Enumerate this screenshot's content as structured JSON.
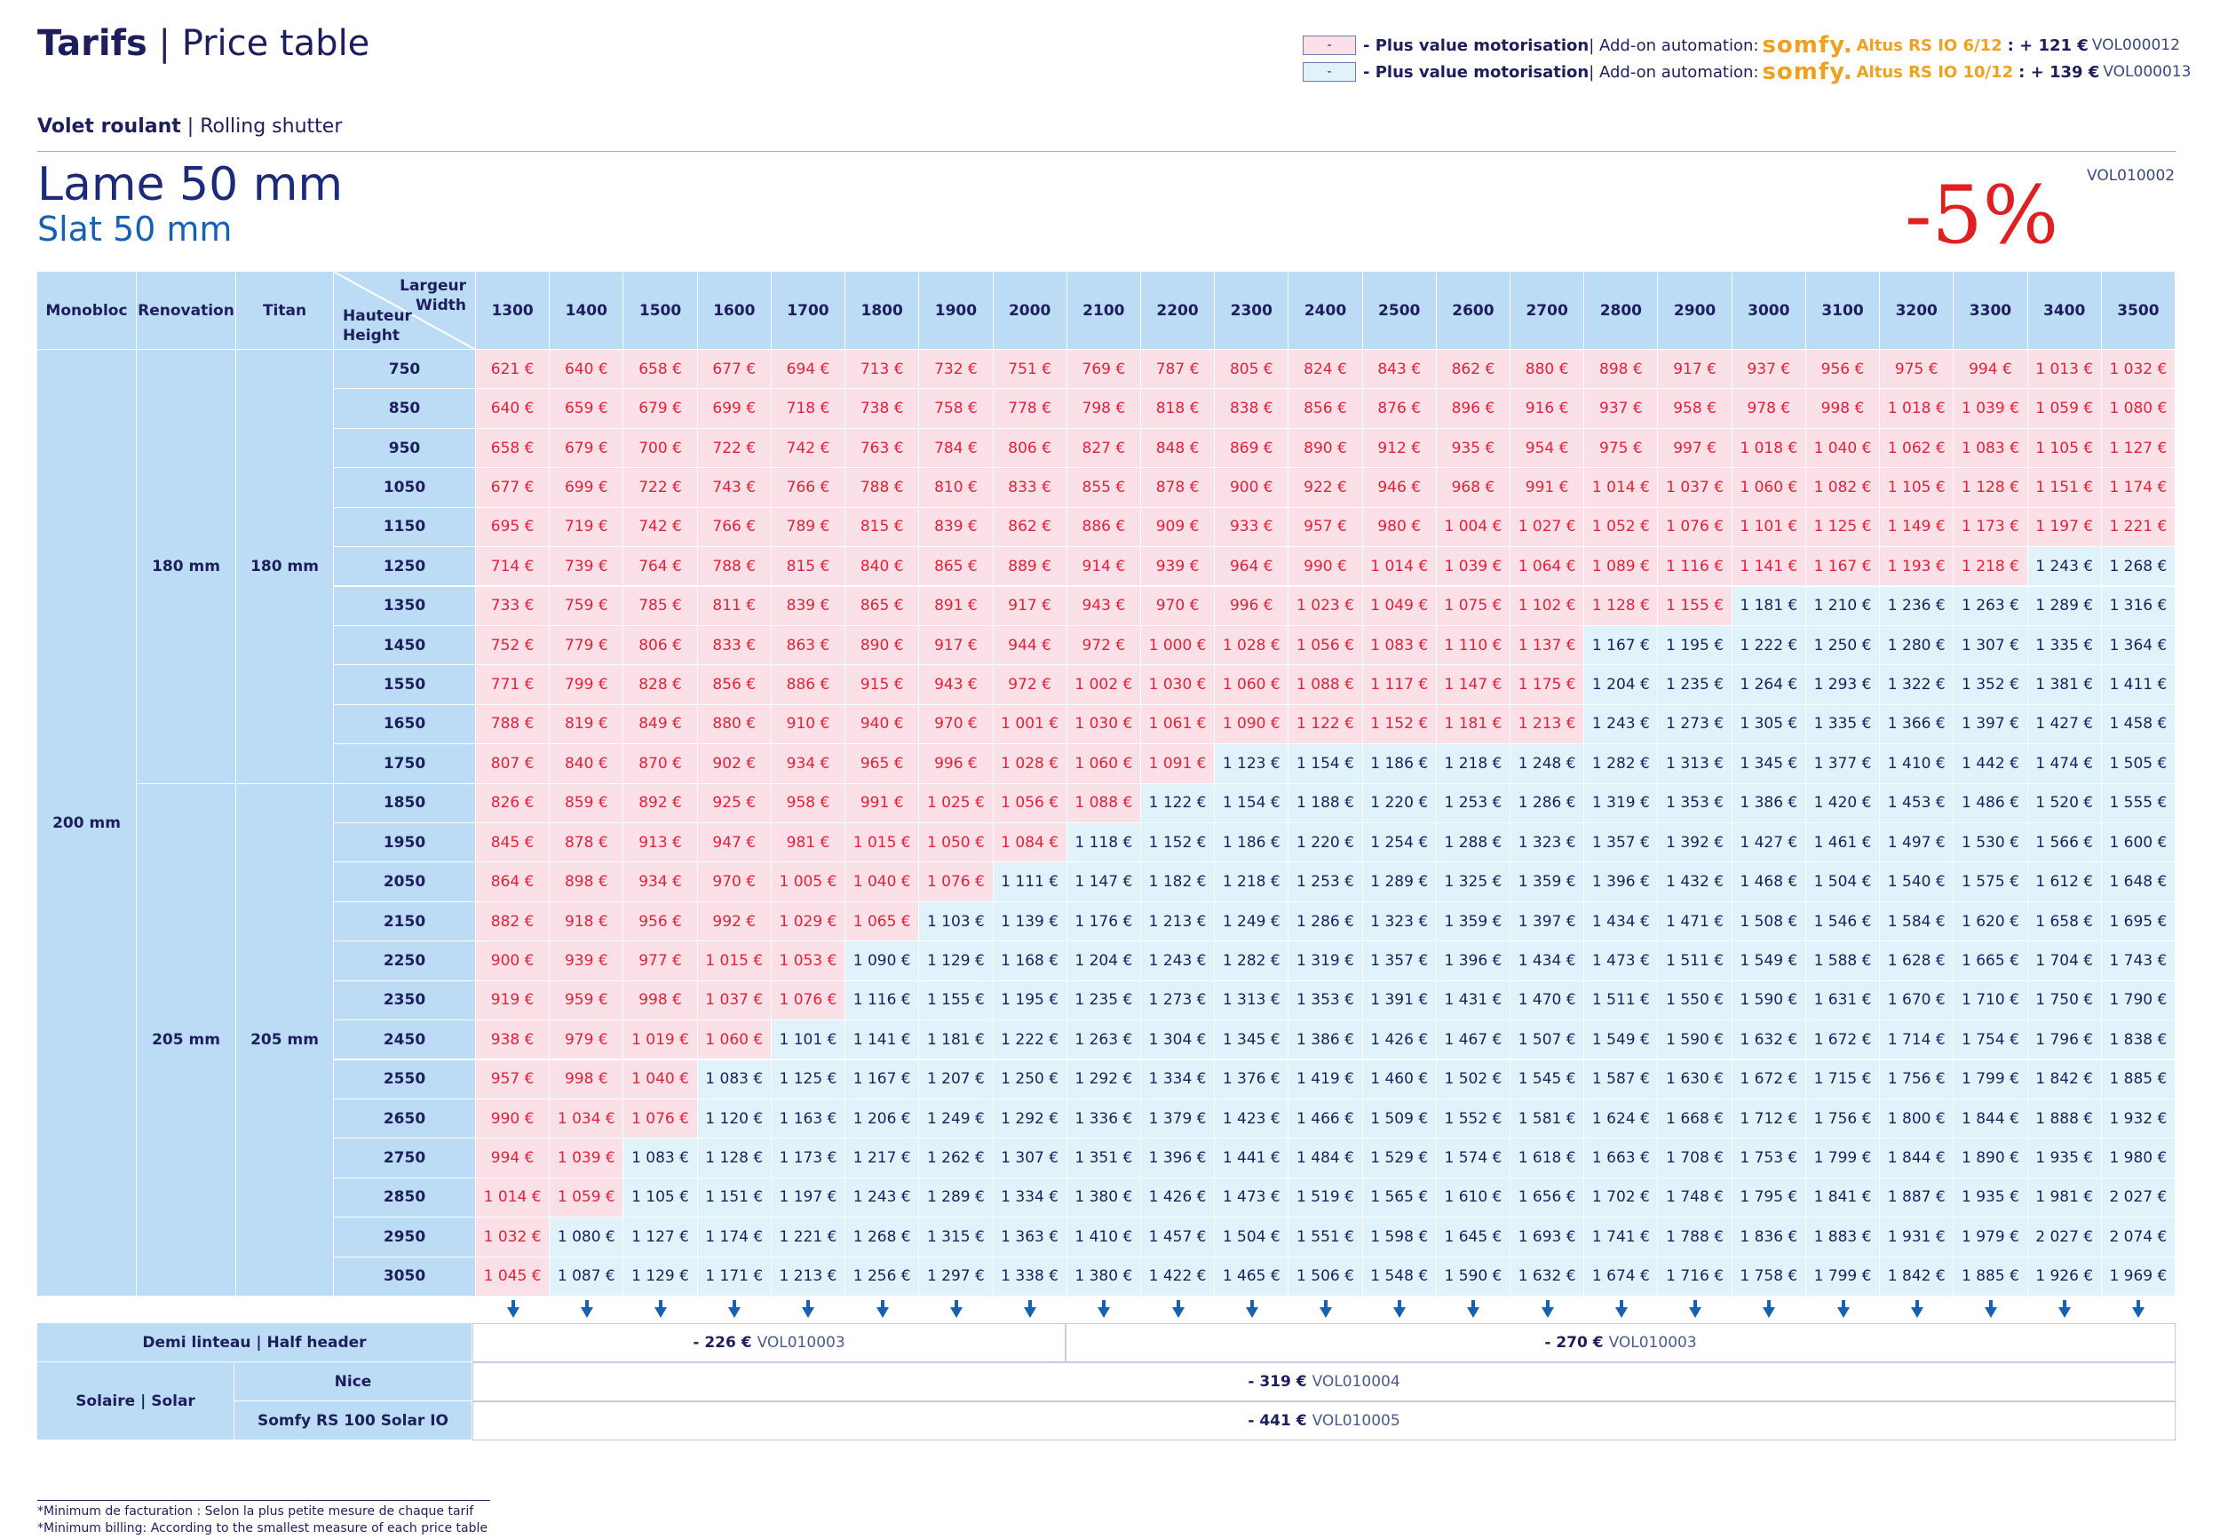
{
  "header": {
    "title_bold": "Tarifs",
    "title_sep": " | ",
    "title_rest": "Price table",
    "category_bold": "Volet roulant",
    "category_sep": " | ",
    "category_rest": "Rolling shutter",
    "slat_fr": "Lame 50 mm",
    "slat_en": "Slat 50 mm",
    "discount": "-5%",
    "discount_code": "VOL010002"
  },
  "legend": [
    {
      "swatch": "-",
      "color": "#fbe0e8",
      "label_bold": "- Plus value motorisation",
      "label_rest": " | Add-on automation:",
      "brand": "somfy.",
      "model": "Altus RS IO 6/12",
      "price": ": + 121 €",
      "code": "VOL000012"
    },
    {
      "swatch": "-",
      "color": "#e0f3fb",
      "label_bold": "- Plus value motorisation",
      "label_rest": " | Add-on automation:",
      "brand": "somfy.",
      "model": "Altus RS IO 10/12",
      "price": ": + 139 €",
      "code": "VOL000013"
    }
  ],
  "table": {
    "col_headers": [
      "Monobloc",
      "Renovation",
      "Titan"
    ],
    "corner_width": "Largeur",
    "corner_width_en": "Width",
    "corner_height": "Hauteur",
    "corner_height_en": "Height",
    "widths": [
      "1300",
      "1400",
      "1500",
      "1600",
      "1700",
      "1800",
      "1900",
      "2000",
      "2100",
      "2200",
      "2300",
      "2400",
      "2500",
      "2600",
      "2700",
      "2800",
      "2900",
      "3000",
      "3100",
      "3200",
      "3300",
      "3400",
      "3500"
    ],
    "heights": [
      "750",
      "850",
      "950",
      "1050",
      "1150",
      "1250",
      "1350",
      "1450",
      "1550",
      "1650",
      "1750",
      "1850",
      "1950",
      "2050",
      "2150",
      "2250",
      "2350",
      "2450",
      "2550",
      "2650",
      "2750",
      "2850",
      "2950",
      "3050"
    ],
    "monobloc": "200 mm",
    "groups": [
      {
        "renovation": "180 mm",
        "titan": "180 mm",
        "rows": 11
      },
      {
        "renovation": "205 mm",
        "titan": "205 mm",
        "rows": 13
      }
    ],
    "red_counts": [
      23,
      23,
      23,
      23,
      23,
      21,
      17,
      15,
      15,
      15,
      10,
      9,
      8,
      7,
      6,
      5,
      5,
      4,
      3,
      3,
      2,
      2,
      1,
      1
    ],
    "prices": [
      [
        "621 €",
        "640 €",
        "658 €",
        "677 €",
        "694 €",
        "713 €",
        "732 €",
        "751 €",
        "769 €",
        "787 €",
        "805 €",
        "824 €",
        "843 €",
        "862 €",
        "880 €",
        "898 €",
        "917 €",
        "937 €",
        "956 €",
        "975 €",
        "994 €",
        "1 013 €",
        "1 032 €"
      ],
      [
        "640 €",
        "659 €",
        "679 €",
        "699 €",
        "718 €",
        "738 €",
        "758 €",
        "778 €",
        "798 €",
        "818 €",
        "838 €",
        "856 €",
        "876 €",
        "896 €",
        "916 €",
        "937 €",
        "958 €",
        "978 €",
        "998 €",
        "1 018 €",
        "1 039 €",
        "1 059 €",
        "1 080 €"
      ],
      [
        "658 €",
        "679 €",
        "700 €",
        "722 €",
        "742 €",
        "763 €",
        "784 €",
        "806 €",
        "827 €",
        "848 €",
        "869 €",
        "890 €",
        "912 €",
        "935 €",
        "954 €",
        "975 €",
        "997 €",
        "1 018 €",
        "1 040 €",
        "1 062 €",
        "1 083 €",
        "1 105 €",
        "1 127 €"
      ],
      [
        "677 €",
        "699 €",
        "722 €",
        "743 €",
        "766 €",
        "788 €",
        "810 €",
        "833 €",
        "855 €",
        "878 €",
        "900 €",
        "922 €",
        "946 €",
        "968 €",
        "991 €",
        "1 014 €",
        "1 037 €",
        "1 060 €",
        "1 082 €",
        "1 105 €",
        "1 128 €",
        "1 151 €",
        "1 174 €"
      ],
      [
        "695 €",
        "719 €",
        "742 €",
        "766 €",
        "789 €",
        "815 €",
        "839 €",
        "862 €",
        "886 €",
        "909 €",
        "933 €",
        "957 €",
        "980 €",
        "1 004 €",
        "1 027 €",
        "1 052 €",
        "1 076 €",
        "1 101 €",
        "1 125 €",
        "1 149 €",
        "1 173 €",
        "1 197 €",
        "1 221 €"
      ],
      [
        "714 €",
        "739 €",
        "764 €",
        "788 €",
        "815 €",
        "840 €",
        "865 €",
        "889 €",
        "914 €",
        "939 €",
        "964 €",
        "990 €",
        "1 014 €",
        "1 039 €",
        "1 064 €",
        "1 089 €",
        "1 116 €",
        "1 141 €",
        "1 167 €",
        "1 193 €",
        "1 218 €",
        "1 243 €",
        "1 268 €"
      ],
      [
        "733 €",
        "759 €",
        "785 €",
        "811 €",
        "839 €",
        "865 €",
        "891 €",
        "917 €",
        "943 €",
        "970 €",
        "996 €",
        "1 023 €",
        "1 049 €",
        "1 075 €",
        "1 102 €",
        "1 128 €",
        "1 155 €",
        "1 181 €",
        "1 210 €",
        "1 236 €",
        "1 263 €",
        "1 289 €",
        "1 316 €"
      ],
      [
        "752 €",
        "779 €",
        "806 €",
        "833 €",
        "863 €",
        "890 €",
        "917 €",
        "944 €",
        "972 €",
        "1 000 €",
        "1 028 €",
        "1 056 €",
        "1 083 €",
        "1 110 €",
        "1 137 €",
        "1 167 €",
        "1 195 €",
        "1 222 €",
        "1 250 €",
        "1 280 €",
        "1 307 €",
        "1 335 €",
        "1 364 €"
      ],
      [
        "771 €",
        "799 €",
        "828 €",
        "856 €",
        "886 €",
        "915 €",
        "943 €",
        "972 €",
        "1 002 €",
        "1 030 €",
        "1 060 €",
        "1 088 €",
        "1 117 €",
        "1 147 €",
        "1 175 €",
        "1 204 €",
        "1 235 €",
        "1 264 €",
        "1 293 €",
        "1 322 €",
        "1 352 €",
        "1 381 €",
        "1 411 €"
      ],
      [
        "788 €",
        "819 €",
        "849 €",
        "880 €",
        "910 €",
        "940 €",
        "970 €",
        "1 001 €",
        "1 030 €",
        "1 061 €",
        "1 090 €",
        "1 122 €",
        "1 152 €",
        "1 181 €",
        "1 213 €",
        "1 243 €",
        "1 273 €",
        "1 305 €",
        "1 335 €",
        "1 366 €",
        "1 397 €",
        "1 427 €",
        "1 458 €"
      ],
      [
        "807 €",
        "840 €",
        "870 €",
        "902 €",
        "934 €",
        "965 €",
        "996 €",
        "1 028 €",
        "1 060 €",
        "1 091 €",
        "1 123 €",
        "1 154 €",
        "1 186 €",
        "1 218 €",
        "1 248 €",
        "1 282 €",
        "1 313 €",
        "1 345 €",
        "1 377 €",
        "1 410 €",
        "1 442 €",
        "1 474 €",
        "1 505 €"
      ],
      [
        "826 €",
        "859 €",
        "892 €",
        "925 €",
        "958 €",
        "991 €",
        "1 025 €",
        "1 056 €",
        "1 088 €",
        "1 122 €",
        "1 154 €",
        "1 188 €",
        "1 220 €",
        "1 253 €",
        "1 286 €",
        "1 319 €",
        "1 353 €",
        "1 386 €",
        "1 420 €",
        "1 453 €",
        "1 486 €",
        "1 520 €",
        "1 555 €"
      ],
      [
        "845 €",
        "878 €",
        "913 €",
        "947 €",
        "981 €",
        "1 015 €",
        "1 050 €",
        "1 084 €",
        "1 118 €",
        "1 152 €",
        "1 186 €",
        "1 220 €",
        "1 254 €",
        "1 288 €",
        "1 323 €",
        "1 357 €",
        "1 392 €",
        "1 427 €",
        "1 461 €",
        "1 497 €",
        "1 530 €",
        "1 566 €",
        "1 600 €"
      ],
      [
        "864 €",
        "898 €",
        "934 €",
        "970 €",
        "1 005 €",
        "1 040 €",
        "1 076 €",
        "1 111 €",
        "1 147 €",
        "1 182 €",
        "1 218 €",
        "1 253 €",
        "1 289 €",
        "1 325 €",
        "1 359 €",
        "1 396 €",
        "1 432 €",
        "1 468 €",
        "1 504 €",
        "1 540 €",
        "1 575 €",
        "1 612 €",
        "1 648 €"
      ],
      [
        "882 €",
        "918 €",
        "956 €",
        "992 €",
        "1 029 €",
        "1 065 €",
        "1 103 €",
        "1 139 €",
        "1 176 €",
        "1 213 €",
        "1 249 €",
        "1 286 €",
        "1 323 €",
        "1 359 €",
        "1 397 €",
        "1 434 €",
        "1 471 €",
        "1 508 €",
        "1 546 €",
        "1 584 €",
        "1 620 €",
        "1 658 €",
        "1 695 €"
      ],
      [
        "900 €",
        "939 €",
        "977 €",
        "1 015 €",
        "1 053 €",
        "1 090 €",
        "1 129 €",
        "1 168 €",
        "1 204 €",
        "1 243 €",
        "1 282 €",
        "1 319 €",
        "1 357 €",
        "1 396 €",
        "1 434 €",
        "1 473 €",
        "1 511 €",
        "1 549 €",
        "1 588 €",
        "1 628 €",
        "1 665 €",
        "1 704 €",
        "1 743 €"
      ],
      [
        "919 €",
        "959 €",
        "998 €",
        "1 037 €",
        "1 076 €",
        "1 116 €",
        "1 155 €",
        "1 195 €",
        "1 235 €",
        "1 273 €",
        "1 313 €",
        "1 353 €",
        "1 391 €",
        "1 431 €",
        "1 470 €",
        "1 511 €",
        "1 550 €",
        "1 590 €",
        "1 631 €",
        "1 670 €",
        "1 710 €",
        "1 750 €",
        "1 790 €"
      ],
      [
        "938 €",
        "979 €",
        "1 019 €",
        "1 060 €",
        "1 101 €",
        "1 141 €",
        "1 181 €",
        "1 222 €",
        "1 263 €",
        "1 304 €",
        "1 345 €",
        "1 386 €",
        "1 426 €",
        "1 467 €",
        "1 507 €",
        "1 549 €",
        "1 590 €",
        "1 632 €",
        "1 672 €",
        "1 714 €",
        "1 754 €",
        "1 796 €",
        "1 838 €"
      ],
      [
        "957 €",
        "998 €",
        "1 040 €",
        "1 083 €",
        "1 125 €",
        "1 167 €",
        "1 207 €",
        "1 250 €",
        "1 292 €",
        "1 334 €",
        "1 376 €",
        "1 419 €",
        "1 460 €",
        "1 502 €",
        "1 545 €",
        "1 587 €",
        "1 630 €",
        "1 672 €",
        "1 715 €",
        "1 756 €",
        "1 799 €",
        "1 842 €",
        "1 885 €"
      ],
      [
        "990 €",
        "1 034 €",
        "1 076 €",
        "1 120 €",
        "1 163 €",
        "1 206 €",
        "1 249 €",
        "1 292 €",
        "1 336 €",
        "1 379 €",
        "1 423 €",
        "1 466 €",
        "1 509 €",
        "1 552 €",
        "1 581 €",
        "1 624 €",
        "1 668 €",
        "1 712 €",
        "1 756 €",
        "1 800 €",
        "1 844 €",
        "1 888 €",
        "1 932 €"
      ],
      [
        "994 €",
        "1 039 €",
        "1 083 €",
        "1 128 €",
        "1 173 €",
        "1 217 €",
        "1 262 €",
        "1 307 €",
        "1 351 €",
        "1 396 €",
        "1 441 €",
        "1 484 €",
        "1 529 €",
        "1 574 €",
        "1 618 €",
        "1 663 €",
        "1 708 €",
        "1 753 €",
        "1 799 €",
        "1 844 €",
        "1 890 €",
        "1 935 €",
        "1 980 €"
      ],
      [
        "1 014 €",
        "1 059 €",
        "1 105 €",
        "1 151 €",
        "1 197 €",
        "1 243 €",
        "1 289 €",
        "1 334 €",
        "1 380 €",
        "1 426 €",
        "1 473 €",
        "1 519 €",
        "1 565 €",
        "1 610 €",
        "1 656 €",
        "1 702 €",
        "1 748 €",
        "1 795 €",
        "1 841 €",
        "1 887 €",
        "1 935 €",
        "1 981 €",
        "2 027 €"
      ],
      [
        "1 032 €",
        "1 080 €",
        "1 127 €",
        "1 174 €",
        "1 221 €",
        "1 268 €",
        "1 315 €",
        "1 363 €",
        "1 410 €",
        "1 457 €",
        "1 504 €",
        "1 551 €",
        "1 598 €",
        "1 645 €",
        "1 693 €",
        "1 741 €",
        "1 788 €",
        "1 836 €",
        "1 883 €",
        "1 931 €",
        "1 979 €",
        "2 027 €",
        "2 074 €"
      ],
      [
        "1 045 €",
        "1 087 €",
        "1 129 €",
        "1 171 €",
        "1 213 €",
        "1 256 €",
        "1 297 €",
        "1 338 €",
        "1 380 €",
        "1 422 €",
        "1 465 €",
        "1 506 €",
        "1 548 €",
        "1 590 €",
        "1 632 €",
        "1 674 €",
        "1 716 €",
        "1 758 €",
        "1 799 €",
        "1 842 €",
        "1 885 €",
        "1 926 €",
        "1 969 €"
      ]
    ]
  },
  "options": {
    "half_header_label": "Demi linteau | Half header",
    "half_header_a_price": "- 226 €",
    "half_header_a_code": "VOL010003",
    "half_header_b_price": "- 270 €",
    "half_header_b_code": "VOL010003",
    "solar_label": "Solaire | Solar",
    "nice_label": "Nice",
    "nice_price": "- 319 €",
    "nice_code": "VOL010004",
    "somfy_label": "Somfy RS 100 Solar IO",
    "somfy_price": "- 441 €",
    "somfy_code": "VOL010005"
  },
  "footnotes": {
    "fr": "*Minimum de facturation : Selon la plus petite mesure de chaque tarif",
    "en": "*Minimum billing: According to the smallest measure of each price table"
  }
}
